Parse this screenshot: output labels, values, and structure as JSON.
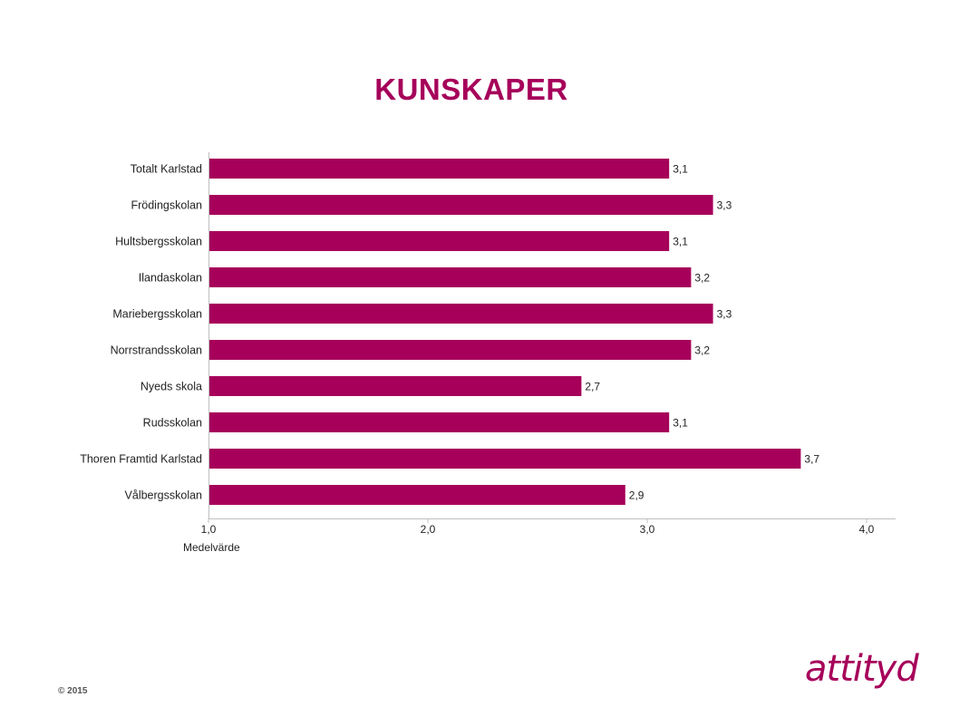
{
  "slide": {
    "title": "KUNSKAPER",
    "copyright": "© 2015",
    "logo_text": "attityd"
  },
  "colors": {
    "accent": "#a6005a",
    "axis": "#bfbfbf",
    "text": "#222222"
  },
  "chart_data": {
    "type": "bar",
    "orientation": "horizontal",
    "categories": [
      "Totalt Karlstad",
      "Frödingskolan",
      "Hultsbergsskolan",
      "Ilandaskolan",
      "Mariebergsskolan",
      "Norrstrandsskolan",
      "Nyeds skola",
      "Rudsskolan",
      "Thoren Framtid Karlstad",
      "Vålbergsskolan"
    ],
    "values": [
      3.1,
      3.3,
      3.1,
      3.2,
      3.3,
      3.2,
      2.7,
      3.1,
      3.7,
      2.9
    ],
    "value_labels": [
      "3,1",
      "3,3",
      "3,1",
      "3,2",
      "3,3",
      "3,2",
      "2,7",
      "3,1",
      "3,7",
      "2,9"
    ],
    "xlim": [
      1.0,
      4.1
    ],
    "xticks": [
      1.0,
      2.0,
      3.0,
      4.0
    ],
    "xtick_labels": [
      "1,0",
      "2,0",
      "3,0",
      "4,0"
    ],
    "xlabel": "Medelvärde",
    "grid": false,
    "legend": "none"
  }
}
